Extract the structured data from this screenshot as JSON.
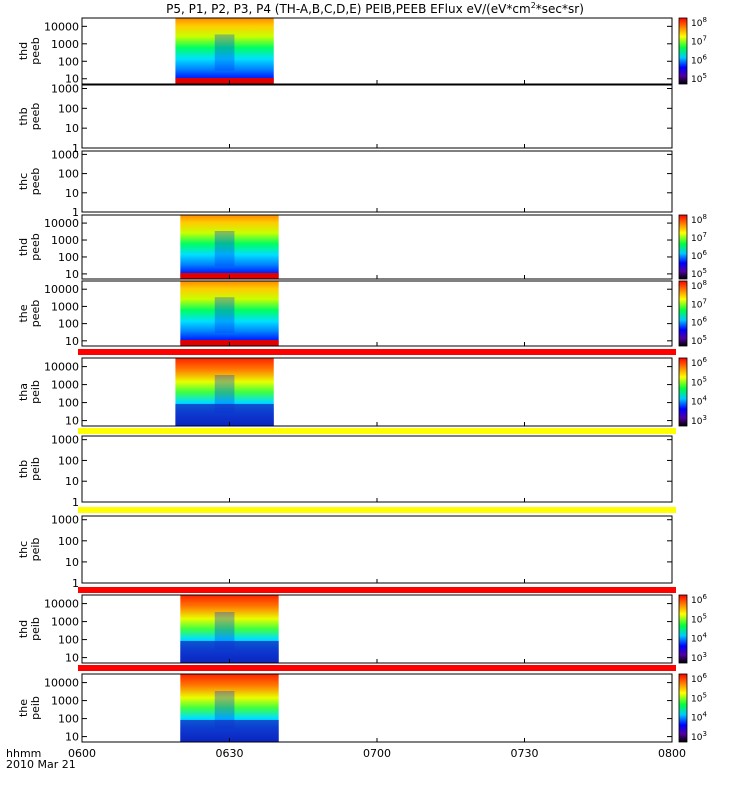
{
  "title": "P5, P1, P2, P3, P4 (TH-A,B,C,D,E) PEIB,PEEB EFlux eV/(eV*cm",
  "title_sup": "2",
  "title_tail": "*sec*sr)",
  "time_axis": {
    "label_line1": "hhmm",
    "label_line2": "2010 Mar 21",
    "ticks": [
      "0600",
      "0630",
      "0700",
      "0730",
      "0800"
    ],
    "range": [
      "06:00",
      "08:00"
    ]
  },
  "colors": {
    "red_bar": "#ff0000",
    "yellow_bar": "#ffff00",
    "axis": "#000000"
  },
  "chart_data": [
    {
      "type": "heatmap",
      "probe": "thd",
      "instrument": "peeb",
      "ylabel": [
        "thd",
        "peeb"
      ],
      "yticks": [
        "10000",
        "1000",
        "100",
        "10"
      ],
      "ylim": [
        5,
        30000
      ],
      "log": true,
      "data_time_range": [
        "06:19",
        "06:39"
      ],
      "colorbar": {
        "base": "10",
        "exponents": [
          "8",
          "7",
          "6",
          "5"
        ]
      },
      "has_data": true
    },
    {
      "type": "heatmap",
      "probe": "thb",
      "instrument": "peeb",
      "ylabel": [
        "thb",
        "peeb"
      ],
      "yticks": [
        "1000",
        "100",
        "10",
        "1"
      ],
      "ylim": [
        1,
        1500
      ],
      "log": true,
      "has_data": false
    },
    {
      "type": "heatmap",
      "probe": "thc",
      "instrument": "peeb",
      "ylabel": [
        "thc",
        "peeb"
      ],
      "yticks": [
        "1000",
        "100",
        "10",
        "1"
      ],
      "ylim": [
        1,
        1500
      ],
      "log": true,
      "has_data": false
    },
    {
      "type": "heatmap",
      "probe": "thd",
      "instrument": "peeb",
      "ylabel": [
        "thd",
        "peeb"
      ],
      "yticks": [
        "10000",
        "1000",
        "100",
        "10"
      ],
      "ylim": [
        5,
        30000
      ],
      "log": true,
      "data_time_range": [
        "06:20",
        "06:40"
      ],
      "colorbar": {
        "base": "10",
        "exponents": [
          "8",
          "7",
          "6",
          "5"
        ]
      },
      "has_data": true
    },
    {
      "type": "heatmap",
      "probe": "the",
      "instrument": "peeb",
      "ylabel": [
        "the",
        "peeb"
      ],
      "yticks": [
        "10000",
        "1000",
        "100",
        "10"
      ],
      "ylim": [
        5,
        30000
      ],
      "log": true,
      "data_time_range": [
        "06:20",
        "06:40"
      ],
      "colorbar": {
        "base": "10",
        "exponents": [
          "8",
          "7",
          "6",
          "5"
        ]
      },
      "has_data": true
    },
    {
      "type": "heatmap",
      "probe": "tha",
      "instrument": "peib",
      "ylabel": [
        "tha",
        "peib"
      ],
      "yticks": [
        "10000",
        "1000",
        "100",
        "10"
      ],
      "ylim": [
        5,
        30000
      ],
      "log": true,
      "data_time_range": [
        "06:19",
        "06:39"
      ],
      "colorbar": {
        "base": "10",
        "exponents": [
          "6",
          "5",
          "4",
          "3"
        ]
      },
      "has_data": true
    },
    {
      "type": "heatmap",
      "probe": "thb",
      "instrument": "peib",
      "ylabel": [
        "thb",
        "peib"
      ],
      "yticks": [
        "1000",
        "100",
        "10",
        "1"
      ],
      "ylim": [
        1,
        1500
      ],
      "log": true,
      "has_data": false
    },
    {
      "type": "heatmap",
      "probe": "thc",
      "instrument": "peib",
      "ylabel": [
        "thc",
        "peib"
      ],
      "yticks": [
        "1000",
        "100",
        "10",
        "1"
      ],
      "ylim": [
        1,
        1500
      ],
      "log": true,
      "has_data": false
    },
    {
      "type": "heatmap",
      "probe": "thd",
      "instrument": "peib",
      "ylabel": [
        "thd",
        "peib"
      ],
      "yticks": [
        "10000",
        "1000",
        "100",
        "10"
      ],
      "ylim": [
        5,
        30000
      ],
      "log": true,
      "data_time_range": [
        "06:20",
        "06:40"
      ],
      "colorbar": {
        "base": "10",
        "exponents": [
          "6",
          "5",
          "4",
          "3"
        ]
      },
      "has_data": true
    },
    {
      "type": "heatmap",
      "probe": "the",
      "instrument": "peib",
      "ylabel": [
        "the",
        "peib"
      ],
      "yticks": [
        "10000",
        "1000",
        "100",
        "10"
      ],
      "ylim": [
        5,
        30000
      ],
      "log": true,
      "data_time_range": [
        "06:20",
        "06:40"
      ],
      "colorbar": {
        "base": "10",
        "exponents": [
          "6",
          "5",
          "4",
          "3"
        ]
      },
      "has_data": true
    }
  ]
}
